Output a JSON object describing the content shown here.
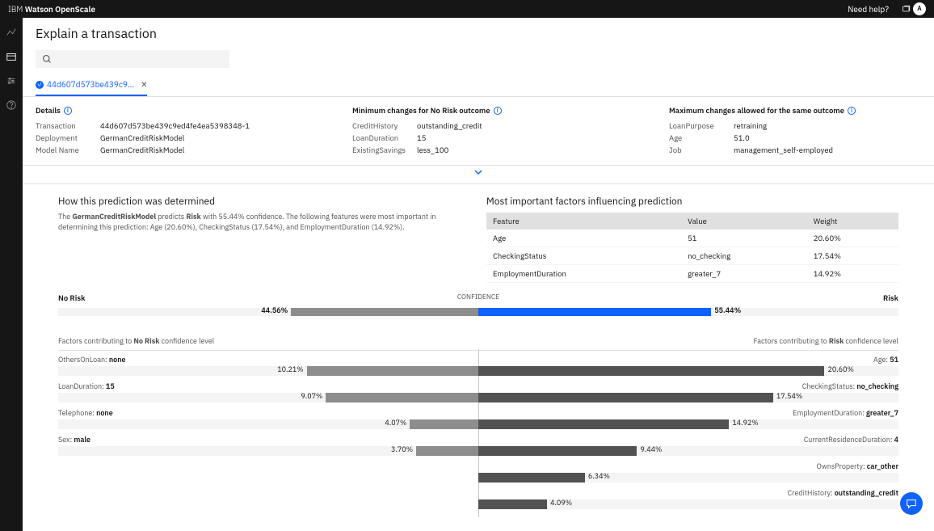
{
  "brand_prefix": "IBM ",
  "brand_name": "Watson OpenScale",
  "help_label": "Need help?",
  "avatar_initials": "A",
  "page_title": "Explain a transaction",
  "tab": {
    "id": "44d607d573be439c9...",
    "closable": true
  },
  "details": {
    "heading": "Details",
    "rows": [
      {
        "k": "Transaction",
        "v": "44d607d573be439c9ed4fe4ea5398348-1"
      },
      {
        "k": "Deployment",
        "v": "GermanCreditRiskModel"
      },
      {
        "k": "Model Name",
        "v": "GermanCreditRiskModel"
      }
    ]
  },
  "min_changes": {
    "heading": "Minimum changes for No Risk outcome",
    "rows": [
      {
        "k": "CreditHistory",
        "v": "outstanding_credit"
      },
      {
        "k": "LoanDuration",
        "v": "15"
      },
      {
        "k": "ExistingSavings",
        "v": "less_100"
      }
    ]
  },
  "max_changes": {
    "heading": "Maximum changes allowed for the same outcome",
    "rows": [
      {
        "k": "LoanPurpose",
        "v": "retraining"
      },
      {
        "k": "Age",
        "v": "51.0"
      },
      {
        "k": "Job",
        "v": "management_self-employed"
      }
    ]
  },
  "how_determined": {
    "title": "How this prediction was determined",
    "desc_prefix": "The ",
    "model": "GermanCreditRiskModel",
    "desc_mid": " predicts ",
    "outcome": "Risk",
    "desc_suffix": " with 55.44% confidence. The following features were most important in determining this prediction: Age (20.60%), CheckingStatus (17.54%), and EmploymentDuration (14.92%)."
  },
  "important_factors": {
    "title": "Most important factors influencing prediction",
    "columns": [
      "Feature",
      "Value",
      "Weight"
    ],
    "rows": [
      [
        "Age",
        "51",
        "20.60%"
      ],
      [
        "CheckingStatus",
        "no_checking",
        "17.54%"
      ],
      [
        "EmploymentDuration",
        "greater_7",
        "14.92%"
      ]
    ]
  },
  "confidence": {
    "left_label": "No Risk",
    "center_label": "CONFIDENCE",
    "right_label": "Risk",
    "left_pct": 44.56,
    "right_pct": 55.44,
    "left_pct_label": "44.56%",
    "right_pct_label": "55.44%",
    "left_color": "#8d8d8d",
    "right_color": "#0f62fe",
    "bg_color": "#f4f4f4"
  },
  "factors_headings": {
    "left_prefix": "Factors contributing to ",
    "left_bold": "No Risk",
    "left_suffix": " confidence level",
    "right_prefix": "Factors contributing to ",
    "right_bold": "Risk",
    "right_suffix": " confidence level"
  },
  "contributions": {
    "bar_scale_pct": 25,
    "left_bar_color": "#8d8d8d",
    "right_bar_color": "#525252",
    "track_color": "#f4f4f4",
    "left": [
      {
        "label": "OthersOnLoan: ",
        "value": "none",
        "pct": 10.21,
        "pct_label": "10.21%"
      },
      {
        "label": "LoanDuration: ",
        "value": "15",
        "pct": 9.07,
        "pct_label": "9.07%"
      },
      {
        "label": "Telephone: ",
        "value": "none",
        "pct": 4.07,
        "pct_label": "4.07%"
      },
      {
        "label": "Sex: ",
        "value": "male",
        "pct": 3.7,
        "pct_label": "3.70%"
      }
    ],
    "right": [
      {
        "label": "Age: ",
        "value": "51",
        "pct": 20.6,
        "pct_label": "20.60%"
      },
      {
        "label": "CheckingStatus: ",
        "value": "no_checking",
        "pct": 17.54,
        "pct_label": "17.54%"
      },
      {
        "label": "EmploymentDuration: ",
        "value": "greater_7",
        "pct": 14.92,
        "pct_label": "14.92%"
      },
      {
        "label": "CurrentResidenceDuration: ",
        "value": "4",
        "pct": 9.44,
        "pct_label": "9.44%"
      },
      {
        "label": "OwnsProperty: ",
        "value": "car_other",
        "pct": 6.34,
        "pct_label": "6.34%"
      },
      {
        "label": "CreditHistory: ",
        "value": "outstanding_credit",
        "pct": 4.09,
        "pct_label": "4.09%"
      }
    ]
  }
}
